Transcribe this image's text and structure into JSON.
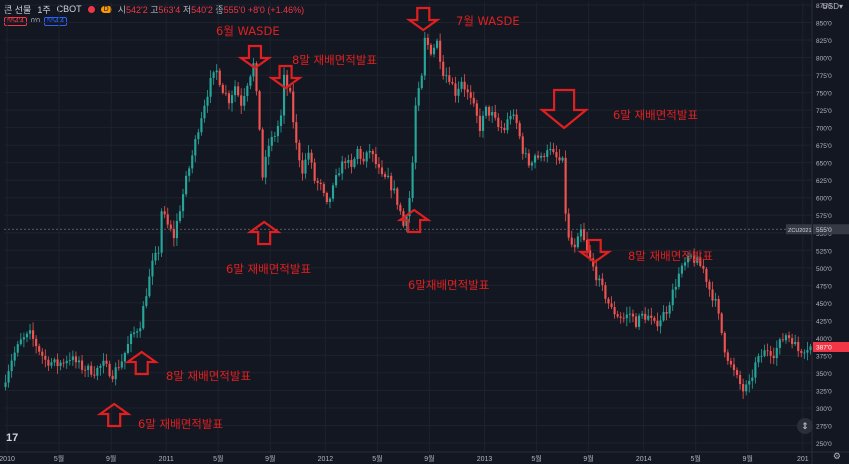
{
  "header": {
    "symbol": "콘 선물",
    "interval": "1주",
    "exchange": "CBOT",
    "badge": "D",
    "ohlc": [
      {
        "k": "시",
        "v": "542'2"
      },
      {
        "k": "고",
        "v": "563'4"
      },
      {
        "k": "저",
        "v": "540'2"
      },
      {
        "k": "종",
        "v": "555'0"
      }
    ],
    "change": "+8'0 (+1.46%)",
    "bid": "554'4",
    "spread": "0'0",
    "ask": "554'4",
    "currency": "USD",
    "currency_arrow": "▾"
  },
  "footer": {
    "logo": "17",
    "gear": "⚙",
    "scroll": "⇕"
  },
  "colors": {
    "bg": "#131722",
    "up": "#26a69a",
    "down": "#ef5350",
    "grid": "#1e222d",
    "arrow": "#e02020",
    "text": "#b2b5be"
  },
  "chart_data": {
    "type": "candlestick",
    "title": "",
    "xlabel": "",
    "ylabel": "",
    "ylim": [
      250,
      875
    ],
    "yticks": [
      "250'0",
      "275'0",
      "300'0",
      "325'0",
      "350'0",
      "375'0",
      "400'0",
      "425'0",
      "450'0",
      "475'0",
      "500'0",
      "525'0",
      "550'0",
      "575'0",
      "600'0",
      "625'0",
      "650'0",
      "675'0",
      "700'0",
      "725'0",
      "750'0",
      "775'0",
      "800'0",
      "825'0",
      "850'0",
      "875'0"
    ],
    "xticks": [
      {
        "label": "2010",
        "week": 1
      },
      {
        "label": "5월",
        "week": 18
      },
      {
        "label": "9월",
        "week": 35
      },
      {
        "label": "2011",
        "week": 53
      },
      {
        "label": "5월",
        "week": 70
      },
      {
        "label": "9월",
        "week": 87
      },
      {
        "label": "2012",
        "week": 105
      },
      {
        "label": "5월",
        "week": 122
      },
      {
        "label": "9월",
        "week": 139
      },
      {
        "label": "2013",
        "week": 157
      },
      {
        "label": "5월",
        "week": 174
      },
      {
        "label": "9월",
        "week": 191
      },
      {
        "label": "2014",
        "week": 209
      },
      {
        "label": "5월",
        "week": 226
      },
      {
        "label": "9월",
        "week": 243
      },
      {
        "label": "201",
        "week": 261
      }
    ],
    "weeks": 264,
    "close_path": [
      [
        0,
        330
      ],
      [
        3,
        370
      ],
      [
        6,
        395
      ],
      [
        9,
        405
      ],
      [
        11,
        390
      ],
      [
        14,
        368
      ],
      [
        18,
        362
      ],
      [
        22,
        372
      ],
      [
        26,
        358
      ],
      [
        30,
        352
      ],
      [
        33,
        362
      ],
      [
        36,
        348
      ],
      [
        39,
        368
      ],
      [
        42,
        400
      ],
      [
        45,
        420
      ],
      [
        47,
        465
      ],
      [
        49,
        505
      ],
      [
        51,
        525
      ],
      [
        52,
        582
      ],
      [
        54,
        560
      ],
      [
        56,
        545
      ],
      [
        58,
        585
      ],
      [
        60,
        625
      ],
      [
        62,
        660
      ],
      [
        64,
        700
      ],
      [
        66,
        735
      ],
      [
        68,
        765
      ],
      [
        70,
        780
      ],
      [
        72,
        755
      ],
      [
        74,
        740
      ],
      [
        76,
        760
      ],
      [
        78,
        735
      ],
      [
        80,
        765
      ],
      [
        82,
        790
      ],
      [
        84,
        700
      ],
      [
        85,
        630
      ],
      [
        87,
        675
      ],
      [
        89,
        690
      ],
      [
        91,
        715
      ],
      [
        92,
        770
      ],
      [
        94,
        745
      ],
      [
        96,
        675
      ],
      [
        98,
        640
      ],
      [
        100,
        665
      ],
      [
        102,
        625
      ],
      [
        104,
        615
      ],
      [
        106,
        588
      ],
      [
        108,
        612
      ],
      [
        110,
        640
      ],
      [
        112,
        655
      ],
      [
        114,
        640
      ],
      [
        116,
        668
      ],
      [
        118,
        650
      ],
      [
        120,
        668
      ],
      [
        122,
        648
      ],
      [
        124,
        628
      ],
      [
        126,
        625
      ],
      [
        128,
        608
      ],
      [
        130,
        580
      ],
      [
        131,
        560
      ],
      [
        133,
        600
      ],
      [
        134,
        650
      ],
      [
        135,
        730
      ],
      [
        137,
        770
      ],
      [
        138,
        825
      ],
      [
        140,
        810
      ],
      [
        142,
        822
      ],
      [
        144,
        780
      ],
      [
        146,
        772
      ],
      [
        148,
        750
      ],
      [
        150,
        768
      ],
      [
        152,
        748
      ],
      [
        154,
        728
      ],
      [
        156,
        700
      ],
      [
        158,
        725
      ],
      [
        160,
        718
      ],
      [
        162,
        700
      ],
      [
        164,
        698
      ],
      [
        166,
        720
      ],
      [
        168,
        705
      ],
      [
        170,
        668
      ],
      [
        172,
        648
      ],
      [
        174,
        662
      ],
      [
        176,
        655
      ],
      [
        178,
        672
      ],
      [
        180,
        660
      ],
      [
        182,
        652
      ],
      [
        183,
        650
      ],
      [
        184,
        580
      ],
      [
        185,
        540
      ],
      [
        187,
        525
      ],
      [
        189,
        552
      ],
      [
        191,
        522
      ],
      [
        193,
        500
      ],
      [
        195,
        478
      ],
      [
        197,
        460
      ],
      [
        199,
        440
      ],
      [
        201,
        433
      ],
      [
        203,
        428
      ],
      [
        205,
        435
      ],
      [
        207,
        422
      ],
      [
        209,
        432
      ],
      [
        211,
        430
      ],
      [
        213,
        418
      ],
      [
        215,
        428
      ],
      [
        217,
        440
      ],
      [
        219,
        465
      ],
      [
        221,
        490
      ],
      [
        223,
        505
      ],
      [
        225,
        515
      ],
      [
        227,
        508
      ],
      [
        229,
        498
      ],
      [
        231,
        470
      ],
      [
        233,
        450
      ],
      [
        234,
        430
      ],
      [
        236,
        385
      ],
      [
        238,
        360
      ],
      [
        240,
        342
      ],
      [
        242,
        325
      ],
      [
        244,
        332
      ],
      [
        246,
        362
      ],
      [
        248,
        375
      ],
      [
        250,
        384
      ],
      [
        252,
        378
      ],
      [
        254,
        392
      ],
      [
        256,
        405
      ],
      [
        258,
        398
      ],
      [
        260,
        382
      ],
      [
        263,
        387
      ]
    ],
    "current_price": {
      "label": "ZCU2021 · 555'0",
      "value": 555
    },
    "last_badge": {
      "label": "387'0",
      "value": 387
    },
    "annotations": [
      {
        "text": "6월 WASDE",
        "dir": "down",
        "week": 82,
        "value": 798
      },
      {
        "text": "8말 재배면적발표",
        "dir": "down",
        "week": 92,
        "value": 785
      },
      {
        "text": "7월 WASDE",
        "dir": "down",
        "week": 137,
        "value": 840
      },
      {
        "text": "6말 재배면적발표",
        "dir": "down",
        "week": 183,
        "value": 680
      },
      {
        "text": "8말 재배면적발표",
        "dir": "down",
        "week": 193,
        "value": 545
      },
      {
        "text": "6말 재배면적발표",
        "dir": "up",
        "week": 85,
        "value": 595
      },
      {
        "text": "6말재배면적발표",
        "dir": "up",
        "week": 134,
        "value": 588
      },
      {
        "text": "8말 재배면적발표",
        "dir": "up",
        "week": 45,
        "value": 363
      },
      {
        "text": "6말 재배면적발표",
        "dir": "up",
        "week": 36,
        "value": 335
      }
    ]
  }
}
